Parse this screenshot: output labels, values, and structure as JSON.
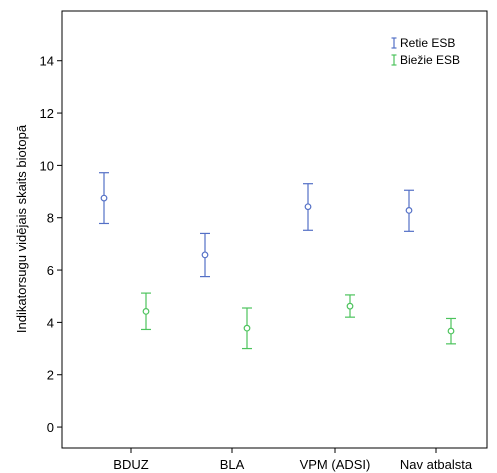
{
  "chart_data": {
    "type": "errorbar",
    "categories": [
      "BDUZ",
      "BLA",
      "VPM (ADSI)",
      "Nav atbalsta"
    ],
    "series": [
      {
        "name": "Retie ESB",
        "color": "#5470c6",
        "means": [
          8.75,
          6.58,
          8.42,
          8.28
        ],
        "lower": [
          7.78,
          5.75,
          7.52,
          7.48
        ],
        "upper": [
          9.72,
          7.4,
          9.3,
          9.05
        ]
      },
      {
        "name": "Biežie ESB",
        "color": "#4cc35c",
        "means": [
          4.42,
          3.78,
          4.62,
          3.67
        ],
        "lower": [
          3.73,
          3.0,
          4.2,
          3.18
        ],
        "upper": [
          5.12,
          4.55,
          5.05,
          4.15
        ]
      }
    ],
    "ylabel": "Indikatorsugu vidējais skaits biotopā",
    "xlabel": "",
    "yticks": [
      0,
      2,
      4,
      6,
      8,
      10,
      12,
      14
    ],
    "ylim": [
      -0.8,
      15.9
    ],
    "grid": false,
    "legend_position": "top-right"
  }
}
